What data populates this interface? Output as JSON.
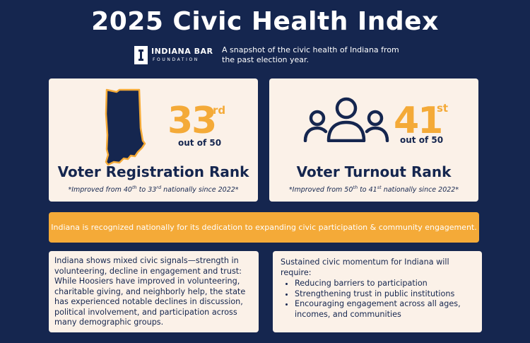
{
  "header": {
    "title": "2025 Civic Health Index",
    "logo_line1": "INDIANA BAR",
    "logo_line2": "FOUNDATION",
    "subtitle": "A snapshot of the civic health of Indiana from the past election year."
  },
  "cards": [
    {
      "rank": "33",
      "suffix": "rd",
      "out_of": "out of 50",
      "title": "Voter Registration Rank",
      "note_prefix": "*Improved from 40",
      "note_sup1": "th",
      "note_mid": " to 33",
      "note_sup2": "rd",
      "note_suffix": " nationally since 2022*",
      "icon": "indiana-state-icon"
    },
    {
      "rank": "41",
      "suffix": "st",
      "out_of": "out of 50",
      "title": "Voter Turnout Rank",
      "note_prefix": "*Improved from 50",
      "note_sup1": "th",
      "note_mid": " to 41",
      "note_sup2": "st",
      "note_suffix": " nationally since 2022*",
      "icon": "people-group-icon"
    }
  ],
  "banner": "Indiana is recognized nationally for its dedication to expanding civic participation & community engagement.",
  "left_box": "Indiana shows mixed civic signals—strength in volunteering, decline in engagement and trust: While Hoosiers have improved in volunteering, charitable giving, and neighborly help, the state has experienced notable declines in discussion, political involvement, and participation across many demographic groups.",
  "right_box": {
    "intro": "Sustained civic momentum for Indiana will require:",
    "items": [
      "Reducing barriers to participation",
      "Strengthening trust in public institutions",
      "Encouraging engagement across all ages, incomes, and communities"
    ]
  },
  "colors": {
    "background": "#15264f",
    "accent": "#f4aa38",
    "card": "#fbf1e8"
  }
}
